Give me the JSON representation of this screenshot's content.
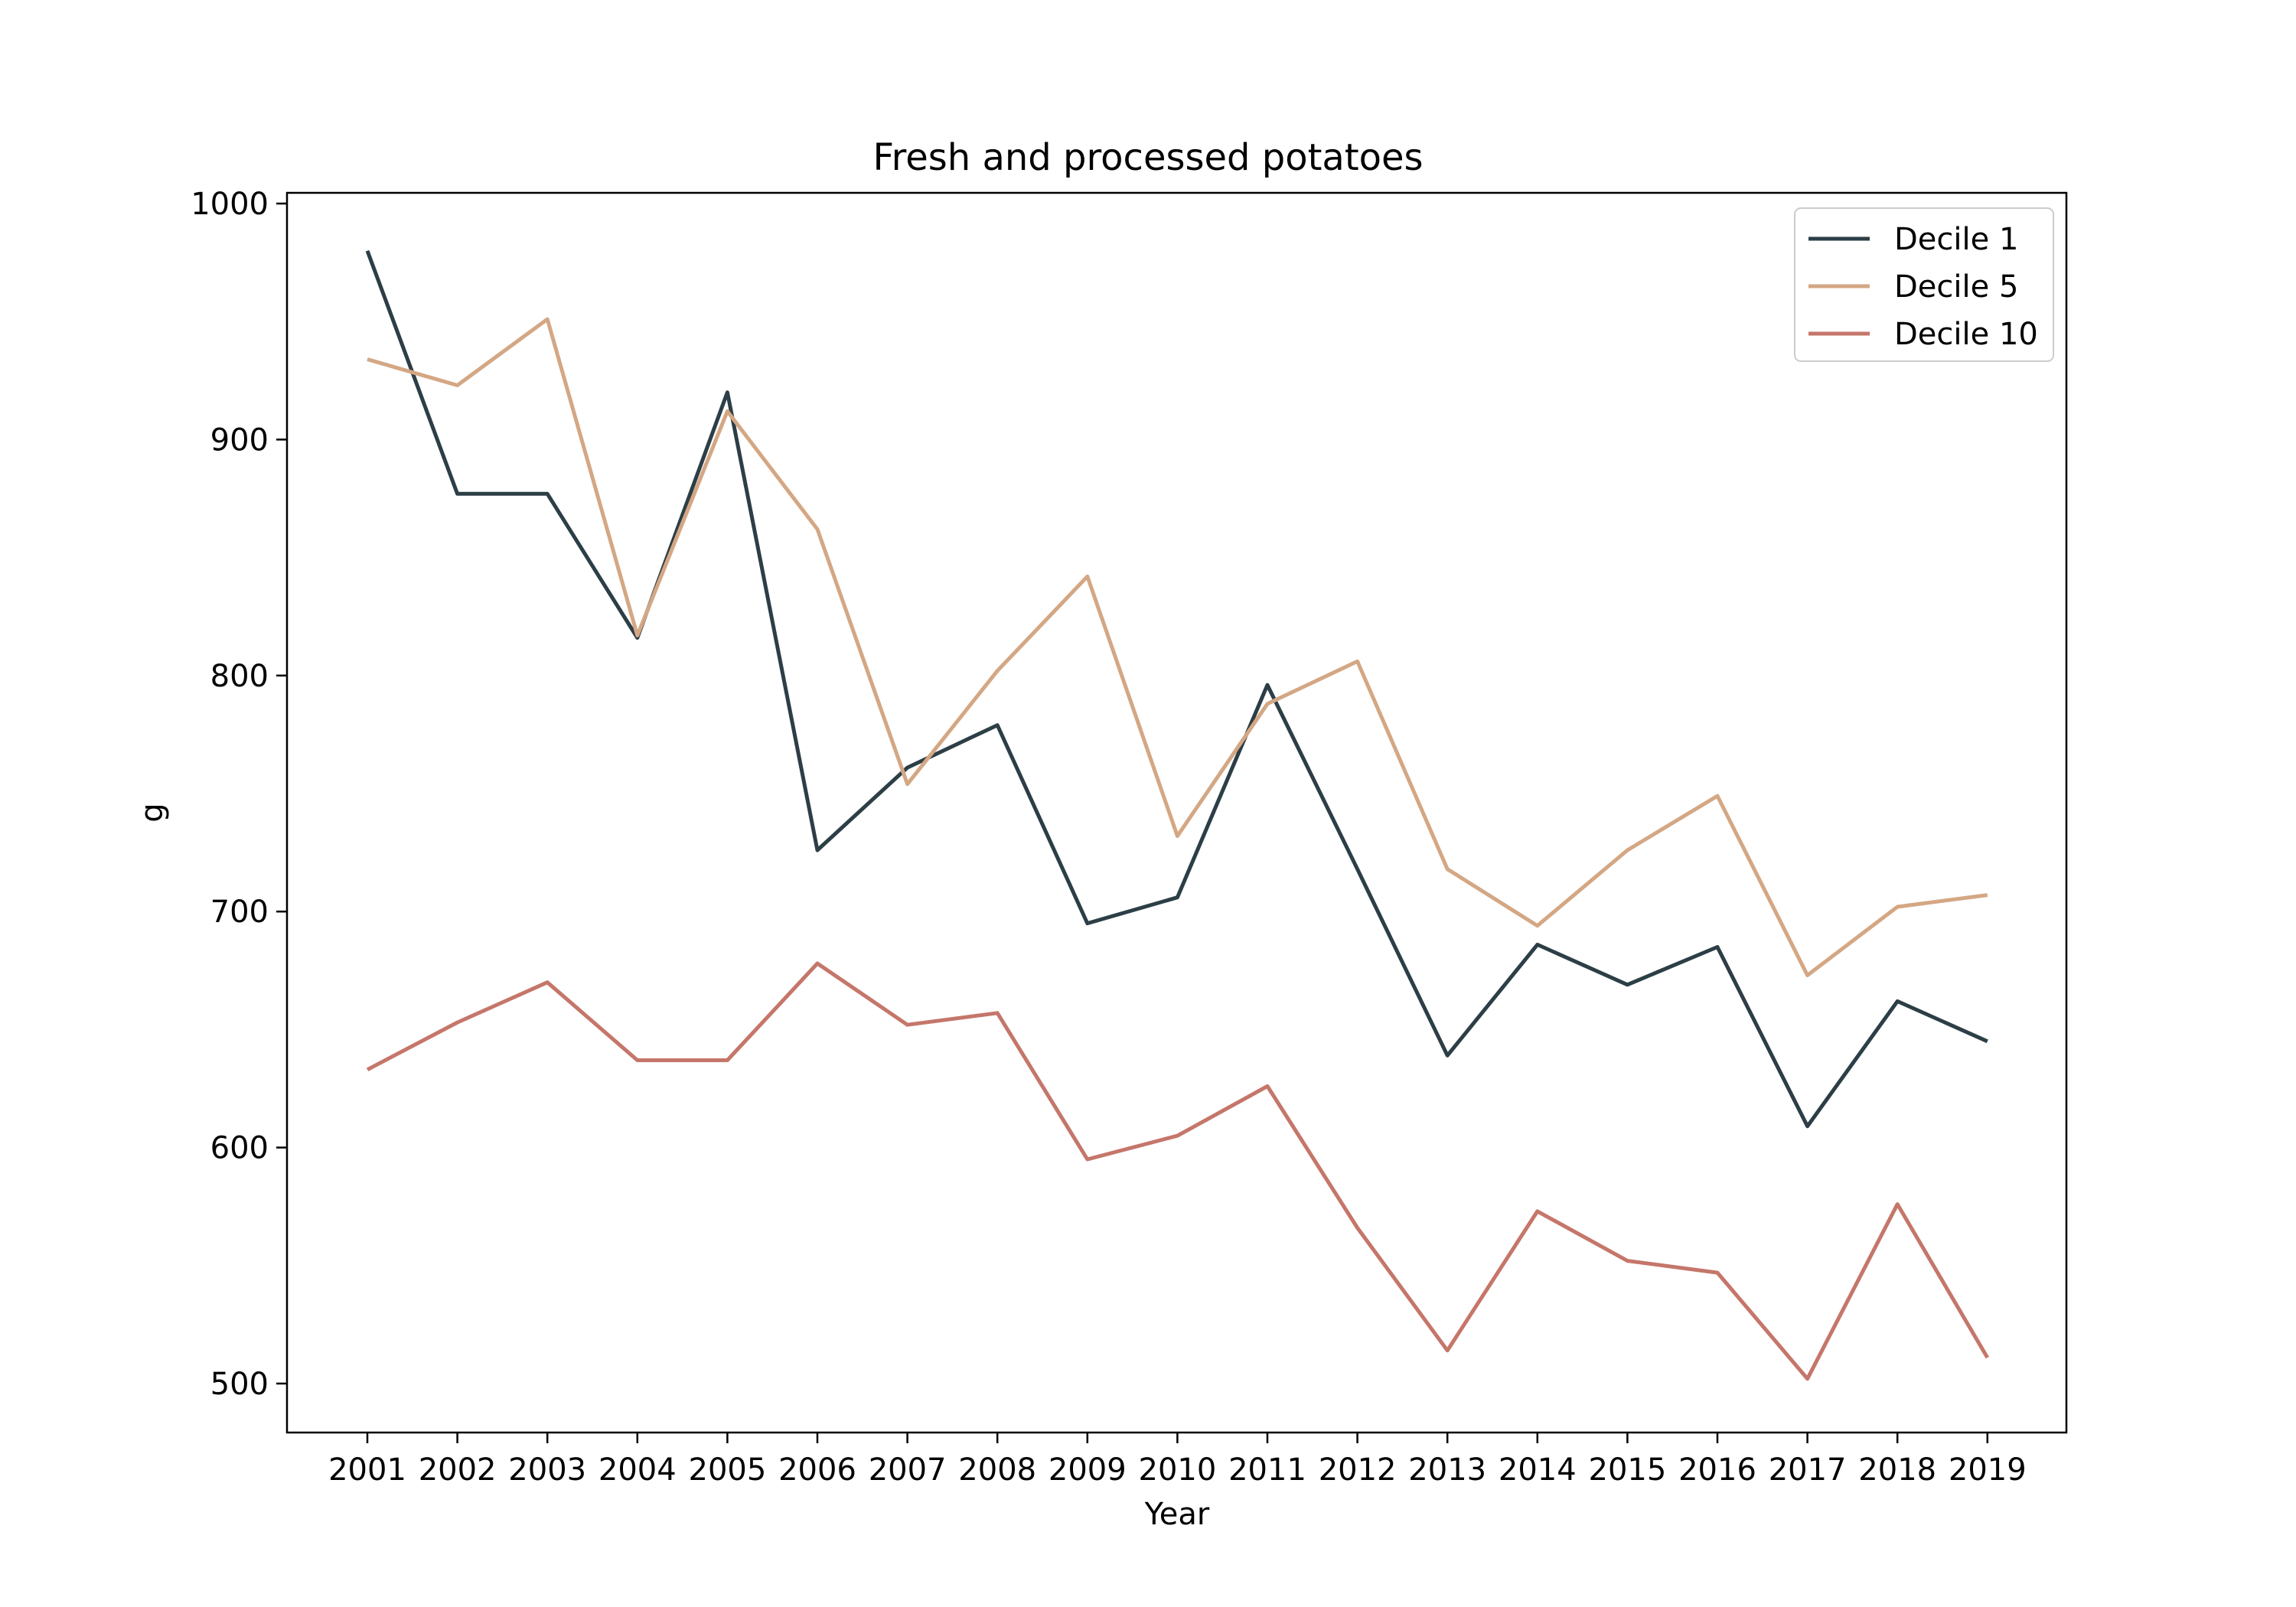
{
  "chart_data": {
    "type": "line",
    "title": "Fresh and processed potatoes",
    "xlabel": "Year",
    "ylabel": "g",
    "ylim": [
      478,
      1005
    ],
    "yticks": [
      500,
      600,
      700,
      800,
      900,
      1000
    ],
    "categories": [
      "2001",
      "2002",
      "2003",
      "2004",
      "2005",
      "2006",
      "2007",
      "2008",
      "2009",
      "2010",
      "2011",
      "2012",
      "2013",
      "2014",
      "2015",
      "2016",
      "2017",
      "2018",
      "2019"
    ],
    "series": [
      {
        "name": "Decile 1",
        "color": "#2c3e46",
        "values": [
          980,
          877,
          877,
          816,
          920,
          726,
          761,
          779,
          695,
          706,
          796,
          718,
          639,
          686,
          669,
          685,
          609,
          662,
          645
        ]
      },
      {
        "name": "Decile 5",
        "color": "#d4a784",
        "values": [
          934,
          923,
          951,
          817,
          912,
          862,
          754,
          802,
          842,
          732,
          788,
          806,
          718,
          694,
          726,
          749,
          673,
          702,
          707
        ]
      },
      {
        "name": "Decile 10",
        "color": "#c5766a",
        "values": [
          633,
          653,
          670,
          637,
          637,
          678,
          652,
          657,
          595,
          605,
          626,
          566,
          514,
          573,
          552,
          547,
          502,
          576,
          511
        ]
      }
    ],
    "legend_position": "top-right",
    "grid": false
  }
}
